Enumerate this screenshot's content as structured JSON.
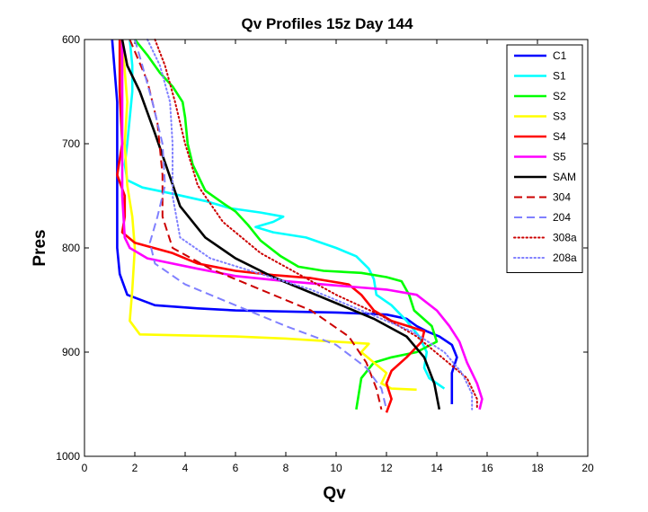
{
  "chart_data": {
    "type": "line",
    "title": "Qv Profiles 15z Day 144",
    "xlabel": "Qv",
    "ylabel": "Pres",
    "xlim": [
      0,
      20
    ],
    "ylim": [
      600,
      1000
    ],
    "y_reversed": true,
    "grid": false,
    "legend_position": "top-right",
    "x_ticks": [
      "0",
      "2",
      "4",
      "6",
      "8",
      "10",
      "12",
      "14",
      "16",
      "18",
      "20"
    ],
    "y_ticks": [
      "600",
      "700",
      "800",
      "900",
      "1000"
    ],
    "series": [
      {
        "name": "C1",
        "color": "#0000ff",
        "style": "solid",
        "points": [
          [
            1.1,
            600
          ],
          [
            1.2,
            630
          ],
          [
            1.3,
            660
          ],
          [
            1.3,
            700
          ],
          [
            1.3,
            750
          ],
          [
            1.3,
            800
          ],
          [
            1.4,
            825
          ],
          [
            1.7,
            845
          ],
          [
            2.8,
            855
          ],
          [
            4.5,
            858
          ],
          [
            6,
            860
          ],
          [
            8,
            861
          ],
          [
            10,
            862
          ],
          [
            12,
            864
          ],
          [
            12.8,
            868
          ],
          [
            13.2,
            875
          ],
          [
            13.6,
            880
          ],
          [
            14.1,
            885
          ],
          [
            14.6,
            893
          ],
          [
            14.8,
            905
          ],
          [
            14.6,
            920
          ],
          [
            14.6,
            935
          ],
          [
            14.6,
            950
          ]
        ]
      },
      {
        "name": "S1",
        "color": "#00ffff",
        "style": "solid",
        "points": [
          [
            1.8,
            600
          ],
          [
            1.9,
            625
          ],
          [
            1.9,
            650
          ],
          [
            1.7,
            700
          ],
          [
            1.6,
            720
          ],
          [
            1.7,
            735
          ],
          [
            2.3,
            742
          ],
          [
            3.5,
            748
          ],
          [
            4.8,
            755
          ],
          [
            5.8,
            762
          ],
          [
            7,
            766
          ],
          [
            7.9,
            770
          ],
          [
            7.5,
            775
          ],
          [
            6.8,
            780
          ],
          [
            7.5,
            785
          ],
          [
            8.8,
            790
          ],
          [
            10,
            800
          ],
          [
            10.8,
            808
          ],
          [
            11.3,
            820
          ],
          [
            11.5,
            830
          ],
          [
            11.6,
            845
          ],
          [
            12.2,
            855
          ],
          [
            12.8,
            870
          ],
          [
            13.3,
            885
          ],
          [
            13.6,
            900
          ],
          [
            13.5,
            915
          ],
          [
            13.7,
            925
          ],
          [
            14.3,
            935
          ]
        ]
      },
      {
        "name": "S2",
        "color": "#00ff00",
        "style": "solid",
        "points": [
          [
            2.0,
            600
          ],
          [
            2.5,
            615
          ],
          [
            3.0,
            632
          ],
          [
            3.5,
            645
          ],
          [
            3.9,
            660
          ],
          [
            4.0,
            675
          ],
          [
            4.1,
            700
          ],
          [
            4.3,
            720
          ],
          [
            4.8,
            745
          ],
          [
            5.5,
            757
          ],
          [
            6.0,
            765
          ],
          [
            6.5,
            778
          ],
          [
            7.0,
            793
          ],
          [
            7.8,
            808
          ],
          [
            8.5,
            818
          ],
          [
            9.5,
            822
          ],
          [
            11,
            824
          ],
          [
            12,
            828
          ],
          [
            12.6,
            832
          ],
          [
            12.9,
            845
          ],
          [
            13.1,
            860
          ],
          [
            13.8,
            875
          ],
          [
            14.0,
            890
          ],
          [
            13.2,
            900
          ],
          [
            12.2,
            905
          ],
          [
            11.5,
            910
          ],
          [
            11.0,
            925
          ],
          [
            10.9,
            940
          ],
          [
            10.8,
            955
          ]
        ]
      },
      {
        "name": "S3",
        "color": "#ffff00",
        "style": "solid",
        "points": [
          [
            1.5,
            600
          ],
          [
            1.6,
            630
          ],
          [
            1.7,
            660
          ],
          [
            1.6,
            700
          ],
          [
            1.7,
            740
          ],
          [
            1.9,
            770
          ],
          [
            2.0,
            800
          ],
          [
            1.9,
            840
          ],
          [
            1.8,
            870
          ],
          [
            2.2,
            883
          ],
          [
            4,
            884
          ],
          [
            6,
            885
          ],
          [
            8,
            887
          ],
          [
            10,
            890
          ],
          [
            11.3,
            892
          ],
          [
            11,
            900
          ],
          [
            11.5,
            910
          ],
          [
            12,
            920
          ],
          [
            11.8,
            930
          ],
          [
            12.2,
            935
          ],
          [
            13.2,
            936
          ]
        ]
      },
      {
        "name": "S4",
        "color": "#ff0000",
        "style": "solid",
        "points": [
          [
            1.4,
            600
          ],
          [
            1.4,
            650
          ],
          [
            1.5,
            700
          ],
          [
            1.3,
            730
          ],
          [
            1.6,
            750
          ],
          [
            1.6,
            770
          ],
          [
            1.5,
            785
          ],
          [
            2.0,
            795
          ],
          [
            3.5,
            805
          ],
          [
            4.5,
            815
          ],
          [
            6,
            822
          ],
          [
            7.5,
            826
          ],
          [
            9,
            829
          ],
          [
            10.5,
            835
          ],
          [
            11,
            845
          ],
          [
            11.5,
            860
          ],
          [
            12.2,
            870
          ],
          [
            13.5,
            880
          ],
          [
            13.4,
            890
          ],
          [
            12.8,
            905
          ],
          [
            12.2,
            918
          ],
          [
            12.0,
            930
          ],
          [
            12.2,
            945
          ],
          [
            12.0,
            958
          ]
        ]
      },
      {
        "name": "S5",
        "color": "#ff00ff",
        "style": "solid",
        "points": [
          [
            1.5,
            600
          ],
          [
            1.5,
            650
          ],
          [
            1.5,
            700
          ],
          [
            1.5,
            750
          ],
          [
            1.6,
            790
          ],
          [
            1.8,
            800
          ],
          [
            2.5,
            810
          ],
          [
            4.5,
            820
          ],
          [
            6,
            827
          ],
          [
            8,
            832
          ],
          [
            10,
            836
          ],
          [
            12,
            840
          ],
          [
            13.2,
            845
          ],
          [
            14.0,
            860
          ],
          [
            14.5,
            875
          ],
          [
            14.9,
            890
          ],
          [
            15.2,
            910
          ],
          [
            15.6,
            930
          ],
          [
            15.8,
            945
          ],
          [
            15.7,
            955
          ]
        ]
      },
      {
        "name": "SAM",
        "color": "#000000",
        "style": "solid",
        "points": [
          [
            1.5,
            600
          ],
          [
            1.7,
            625
          ],
          [
            2.2,
            650
          ],
          [
            2.8,
            690
          ],
          [
            3.3,
            725
          ],
          [
            3.8,
            760
          ],
          [
            4.8,
            790
          ],
          [
            6.0,
            810
          ],
          [
            7.5,
            828
          ],
          [
            9.5,
            848
          ],
          [
            11.5,
            868
          ],
          [
            12.8,
            885
          ],
          [
            13.5,
            905
          ],
          [
            13.9,
            930
          ],
          [
            14.1,
            955
          ]
        ]
      },
      {
        "name": "304",
        "color": "#cc0000",
        "style": "dashed",
        "points": [
          [
            1.8,
            600
          ],
          [
            2.5,
            640
          ],
          [
            2.9,
            680
          ],
          [
            3.1,
            730
          ],
          [
            3.1,
            770
          ],
          [
            3.5,
            800
          ],
          [
            5,
            820
          ],
          [
            7,
            840
          ],
          [
            9,
            860
          ],
          [
            10.5,
            885
          ],
          [
            11.2,
            910
          ],
          [
            11.6,
            935
          ],
          [
            11.8,
            955
          ]
        ]
      },
      {
        "name": "204",
        "color": "#8080ff",
        "style": "dashed",
        "points": [
          [
            2.0,
            600
          ],
          [
            2.3,
            625
          ],
          [
            2.7,
            660
          ],
          [
            3.1,
            700
          ],
          [
            3.2,
            740
          ],
          [
            2.9,
            770
          ],
          [
            2.6,
            795
          ],
          [
            2.8,
            815
          ],
          [
            4,
            835
          ],
          [
            6,
            855
          ],
          [
            8,
            875
          ],
          [
            10,
            893
          ],
          [
            11.2,
            915
          ],
          [
            11.8,
            935
          ],
          [
            12.0,
            955
          ]
        ]
      },
      {
        "name": "308a",
        "color": "#cc0000",
        "style": "dotted",
        "points": [
          [
            2.8,
            600
          ],
          [
            3.2,
            625
          ],
          [
            3.6,
            660
          ],
          [
            4.0,
            700
          ],
          [
            4.5,
            740
          ],
          [
            5.5,
            775
          ],
          [
            7,
            805
          ],
          [
            8.5,
            825
          ],
          [
            10,
            845
          ],
          [
            11.8,
            865
          ],
          [
            13.2,
            885
          ],
          [
            14.2,
            905
          ],
          [
            15.2,
            925
          ],
          [
            15.6,
            945
          ],
          [
            15.6,
            955
          ]
        ]
      },
      {
        "name": "208a",
        "color": "#8080ff",
        "style": "dotted",
        "points": [
          [
            2.5,
            600
          ],
          [
            3.0,
            625
          ],
          [
            3.4,
            660
          ],
          [
            3.5,
            700
          ],
          [
            3.5,
            750
          ],
          [
            3.8,
            790
          ],
          [
            5,
            810
          ],
          [
            7,
            825
          ],
          [
            9,
            840
          ],
          [
            11,
            860
          ],
          [
            13,
            880
          ],
          [
            14.3,
            900
          ],
          [
            15.0,
            920
          ],
          [
            15.4,
            940
          ],
          [
            15.4,
            955
          ]
        ]
      }
    ]
  }
}
